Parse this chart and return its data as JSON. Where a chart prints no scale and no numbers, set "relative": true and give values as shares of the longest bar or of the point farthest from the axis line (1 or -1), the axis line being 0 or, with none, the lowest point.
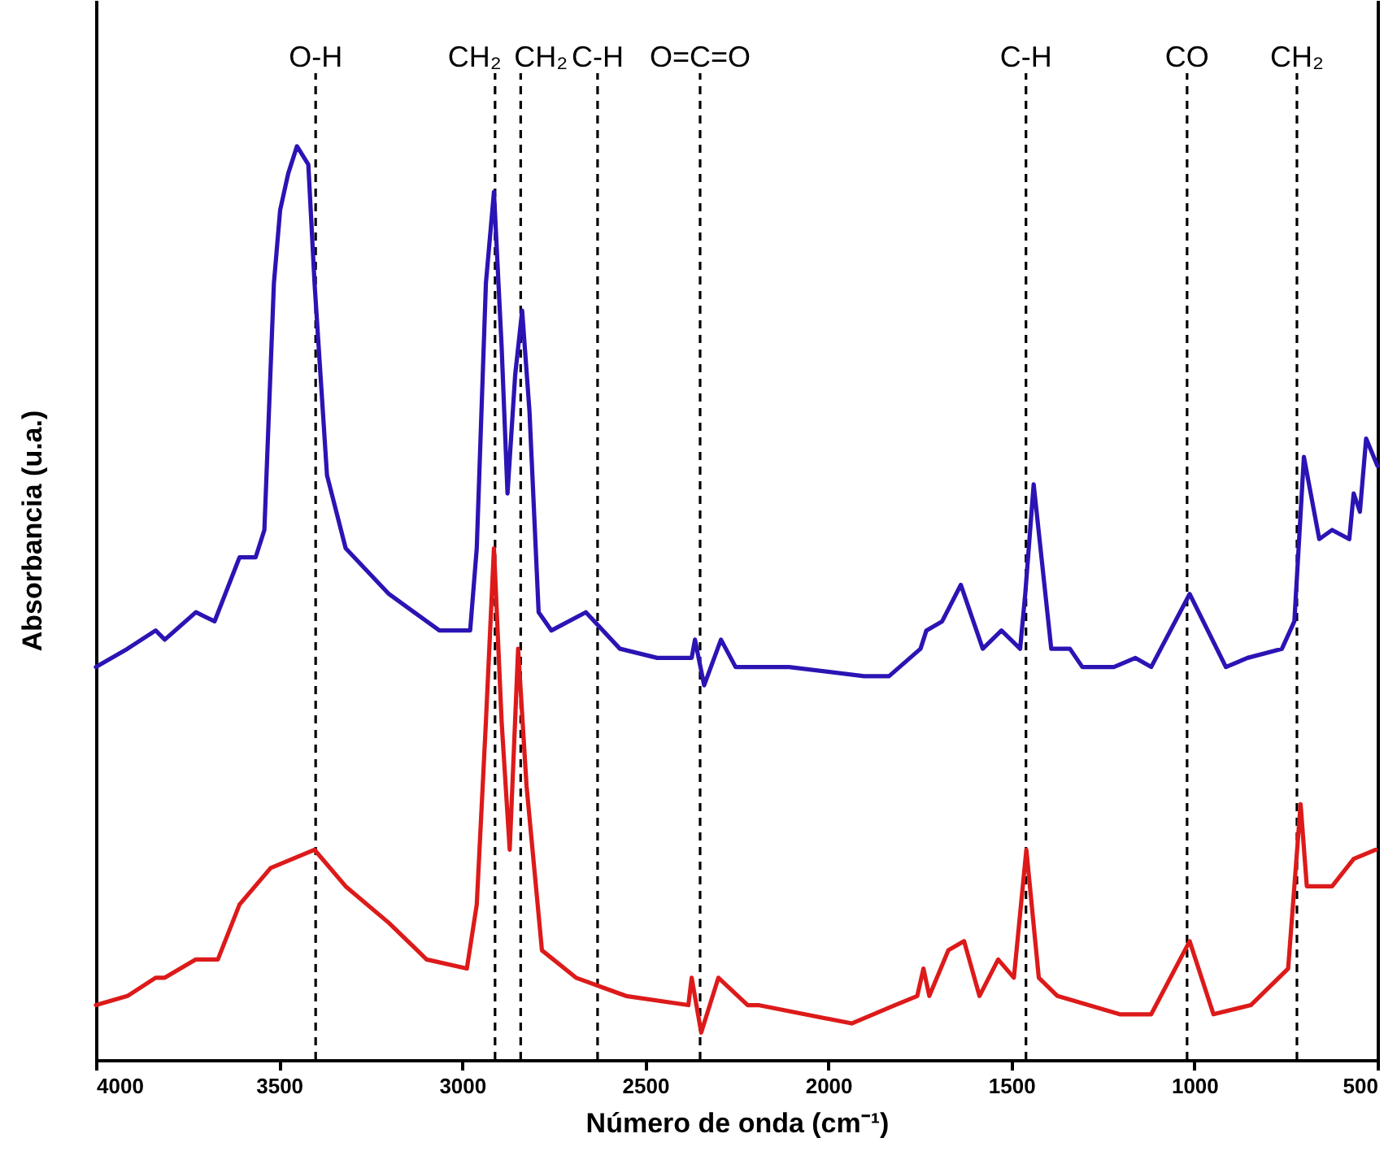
{
  "chart_data": {
    "type": "line",
    "relative": true,
    "xlabel": "Número de onda (cm⁻¹)",
    "ylabel": "Absorbancia (u.a.)",
    "xlim": [
      4000,
      500
    ],
    "xticks": [
      4000,
      3500,
      3000,
      2500,
      2000,
      1500,
      1000,
      500
    ],
    "line_style": "solid",
    "marker": "none",
    "series": [
      {
        "color": "#2b14b4",
        "x": [
          4000,
          3914,
          3837,
          3812,
          3727,
          3676,
          3608,
          3564,
          3540,
          3514,
          3497,
          3475,
          3451,
          3420,
          3403,
          3369,
          3318,
          3200,
          3062,
          2978,
          2960,
          2935,
          2913,
          2892,
          2876,
          2855,
          2836,
          2816,
          2791,
          2756,
          2662,
          2569,
          2467,
          2373,
          2364,
          2339,
          2293,
          2253,
          2107,
          1902,
          1834,
          1748,
          1732,
          1689,
          1638,
          1578,
          1527,
          1476,
          1462,
          1439,
          1391,
          1340,
          1306,
          1220,
          1161,
          1118,
          1013,
          914,
          855,
          761,
          727,
          701,
          659,
          624,
          577,
          565,
          548,
          531,
          500
        ],
        "values": [
          0.43,
          0.45,
          0.47,
          0.46,
          0.49,
          0.48,
          0.55,
          0.55,
          0.58,
          0.85,
          0.93,
          0.97,
          1.0,
          0.98,
          0.85,
          0.64,
          0.56,
          0.51,
          0.47,
          0.47,
          0.56,
          0.85,
          0.95,
          0.78,
          0.62,
          0.75,
          0.82,
          0.71,
          0.49,
          0.47,
          0.49,
          0.45,
          0.44,
          0.44,
          0.46,
          0.41,
          0.46,
          0.43,
          0.43,
          0.42,
          0.42,
          0.45,
          0.47,
          0.48,
          0.52,
          0.45,
          0.47,
          0.45,
          0.51,
          0.63,
          0.45,
          0.45,
          0.43,
          0.43,
          0.44,
          0.43,
          0.51,
          0.43,
          0.44,
          0.45,
          0.48,
          0.66,
          0.57,
          0.58,
          0.57,
          0.62,
          0.6,
          0.68,
          0.65
        ]
      },
      {
        "color": "#dd1a1a",
        "x": [
          4000,
          3914,
          3837,
          3812,
          3727,
          3667,
          3608,
          3523,
          3403,
          3318,
          3200,
          3097,
          2987,
          2960,
          2935,
          2913,
          2892,
          2870,
          2847,
          2824,
          2782,
          2689,
          2552,
          2382,
          2373,
          2347,
          2300,
          2220,
          2191,
          1936,
          1818,
          1757,
          1740,
          1724,
          1672,
          1629,
          1587,
          1536,
          1493,
          1459,
          1425,
          1374,
          1204,
          1118,
          1013,
          948,
          846,
          744,
          710,
          693,
          624,
          565,
          505
        ],
        "values": [
          0.06,
          0.07,
          0.09,
          0.09,
          0.11,
          0.11,
          0.17,
          0.21,
          0.23,
          0.19,
          0.15,
          0.11,
          0.1,
          0.17,
          0.37,
          0.56,
          0.37,
          0.23,
          0.45,
          0.3,
          0.12,
          0.09,
          0.07,
          0.06,
          0.09,
          0.03,
          0.09,
          0.06,
          0.06,
          0.04,
          0.06,
          0.07,
          0.1,
          0.07,
          0.12,
          0.13,
          0.07,
          0.11,
          0.09,
          0.23,
          0.09,
          0.07,
          0.05,
          0.05,
          0.13,
          0.05,
          0.06,
          0.1,
          0.28,
          0.19,
          0.19,
          0.22,
          0.23
        ]
      }
    ],
    "ref_lines": [
      {
        "axis": "x",
        "value": 3400,
        "label": "O-H",
        "color": "#000000",
        "line_style": "dashed"
      },
      {
        "axis": "x",
        "value": 2910,
        "label": "CH₂",
        "color": "#000000",
        "line_style": "dashed"
      },
      {
        "axis": "x",
        "value": 2840,
        "label": "CH₂",
        "color": "#000000",
        "line_style": "dashed"
      },
      {
        "axis": "x",
        "value": 2630,
        "label": "C-H",
        "color": "#000000",
        "line_style": "dashed"
      },
      {
        "axis": "x",
        "value": 2350,
        "label": "O=C=O",
        "color": "#000000",
        "line_style": "dashed"
      },
      {
        "axis": "x",
        "value": 1460,
        "label": "C-H",
        "color": "#000000",
        "line_style": "dashed"
      },
      {
        "axis": "x",
        "value": 1020,
        "label": "CO",
        "color": "#000000",
        "line_style": "dashed"
      },
      {
        "axis": "x",
        "value": 720,
        "label": "CH₂",
        "color": "#000000",
        "line_style": "dashed"
      }
    ]
  }
}
